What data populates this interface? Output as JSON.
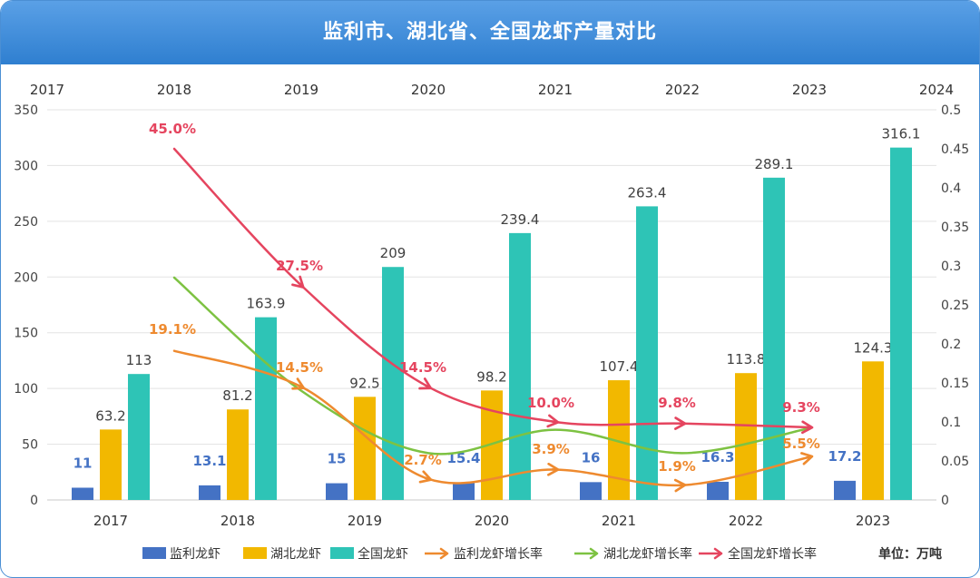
{
  "title": "监利市、湖北省、全国龙虾产量对比",
  "unit_label": "单位：万吨",
  "chart_data": {
    "type": "bar",
    "title": "监利市、湖北省、全国龙虾产量对比",
    "categories": [
      "2017",
      "2018",
      "2019",
      "2020",
      "2021",
      "2022",
      "2023"
    ],
    "secondary_x_ticks": [
      "2017",
      "2018",
      "2019",
      "2020",
      "2021",
      "2022",
      "2023",
      "2024"
    ],
    "y_left": {
      "min": 0,
      "max": 350,
      "ticks": [
        "0",
        "50",
        "100",
        "150",
        "200",
        "250",
        "300",
        "350"
      ]
    },
    "y_right": {
      "min": 0,
      "max": 0.5,
      "ticks": [
        "0",
        "0.05",
        "0.1",
        "0.15",
        "0.2",
        "0.25",
        "0.3",
        "0.35",
        "0.4",
        "0.45",
        "0.5"
      ]
    },
    "grid": true,
    "legend_position": "bottom",
    "bar_series": [
      {
        "name": "监利龙虾",
        "color": "#4472c4",
        "label_color": "#4472c4",
        "values": [
          11,
          13.1,
          15,
          15.4,
          16,
          16.3,
          17.2
        ],
        "labels": [
          "11",
          "13.1",
          "15",
          "15.4",
          "16",
          "16.3",
          "17.2"
        ]
      },
      {
        "name": "湖北龙虾",
        "color": "#f2b800",
        "label_color": "#404040",
        "values": [
          63.2,
          81.2,
          92.5,
          98.2,
          107.4,
          113.8,
          124.3
        ],
        "labels": [
          "63.2",
          "81.2",
          "92.5",
          "98.2",
          "107.4",
          "113.8",
          "124.3"
        ]
      },
      {
        "name": "全国龙虾",
        "color": "#2ec4b6",
        "label_color": "#404040",
        "values": [
          113,
          163.9,
          209,
          239.4,
          263.4,
          289.1,
          316.1
        ],
        "labels": [
          "113",
          "163.9",
          "209",
          "239.4",
          "263.4",
          "289.1",
          "316.1"
        ]
      }
    ],
    "line_series": [
      {
        "name": "监利龙虾增长率",
        "color": "#ee8a2f",
        "arrow": true,
        "values": [
          0.191,
          0.145,
          0.027,
          0.039,
          0.019,
          0.055
        ],
        "labels": [
          "19.1%",
          "14.5%",
          "2.7%",
          "3.9%",
          "1.9%",
          "5.5%"
        ]
      },
      {
        "name": "湖北龙虾增长率",
        "color": "#7dc242",
        "arrow": false,
        "values": [
          0.285,
          0.14,
          0.06,
          0.09,
          0.06,
          0.092
        ],
        "labels": []
      },
      {
        "name": "全国龙虾增长率",
        "color": "#e5455f",
        "arrow": true,
        "values": [
          0.45,
          0.275,
          0.145,
          0.1,
          0.098,
          0.093
        ],
        "labels": [
          "45.0%",
          "27.5%",
          "14.5%",
          "10.0%",
          "9.8%",
          "9.3%"
        ]
      }
    ]
  }
}
